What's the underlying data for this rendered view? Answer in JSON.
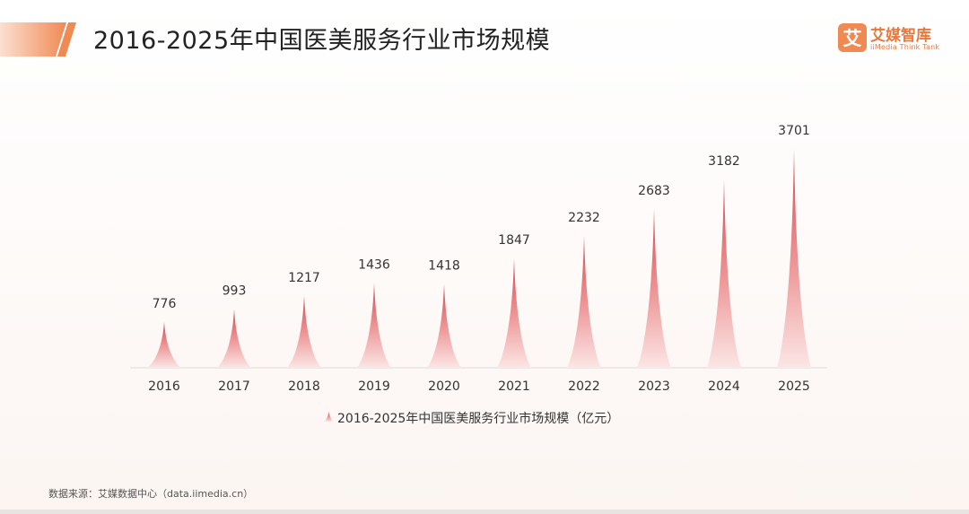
{
  "header": {
    "title": "2016-2025年中国医美服务行业市场规模"
  },
  "logo": {
    "mark_char": "艾",
    "name": "艾媒智库",
    "sub": "iiMedia Think Tank"
  },
  "colors": {
    "accent": "#f08a53",
    "bar_top": "#d9474f",
    "bar_bottom": "#fbe4e3",
    "axis": "#d8d8d8"
  },
  "legend": {
    "label": "2016-2025年中国医美服务行业市场规模（亿元）"
  },
  "source": {
    "text": "数据来源：艾媒数据中心（data.iimedia.cn）"
  },
  "chart_data": {
    "type": "bar",
    "title": "2016-2025年中国医美服务行业市场规模",
    "categories": [
      "2016",
      "2017",
      "2018",
      "2019",
      "2020",
      "2021",
      "2022",
      "2023",
      "2024",
      "2025"
    ],
    "series": [
      {
        "name": "2016-2025年中国医美服务行业市场规模（亿元）",
        "values": [
          776,
          993,
          1217,
          1436,
          1418,
          1847,
          2232,
          2683,
          3182,
          3701
        ]
      }
    ],
    "xlabel": "",
    "ylabel": "",
    "ylim": [
      0,
      3701
    ],
    "grid": false,
    "legend_position": "bottom"
  }
}
